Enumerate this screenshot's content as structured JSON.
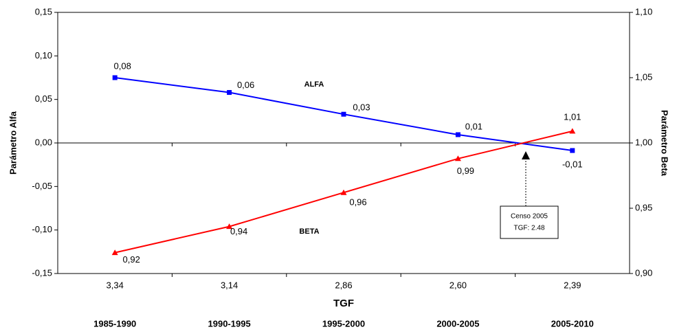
{
  "chart_data": {
    "type": "line",
    "x_label": "TGF",
    "y_label": "Parámetro Alfa",
    "y2_label": "Parámetro Beta",
    "categories": [
      "3,34",
      "3,14",
      "2,86",
      "2,60",
      "2,39"
    ],
    "periods": [
      "1985-1990",
      "1990-1995",
      "1995-2000",
      "2000-2005",
      "2005-2010"
    ],
    "series": [
      {
        "name": "ALFA",
        "color": "#0000ff",
        "values": [
          0.075,
          0.058,
          0.033,
          0.0095,
          -0.0087
        ],
        "value_labels": [
          "0,08",
          "0,06",
          "0,03",
          "0,01",
          "-0,01"
        ]
      },
      {
        "name": "BETA",
        "color": "#ff0000",
        "axis": "y2",
        "values": [
          0.916,
          0.936,
          0.962,
          0.988,
          1.009
        ],
        "value_labels": [
          "0,92",
          "0,94",
          "0,96",
          "0,99",
          "1,01"
        ]
      }
    ],
    "ylim": [
      -0.15,
      0.15
    ],
    "yticks": [
      {
        "value": -0.15,
        "label": "-0,15"
      },
      {
        "value": -0.1,
        "label": "-0,10"
      },
      {
        "value": -0.05,
        "label": "-0,05"
      },
      {
        "value": 0,
        "label": "0,00"
      },
      {
        "value": 0.05,
        "label": "0,05"
      },
      {
        "value": 0.1,
        "label": "0,10"
      },
      {
        "value": 0.15,
        "label": "0,15"
      }
    ],
    "y2lim": [
      0.9,
      1.1
    ],
    "y2ticks": [
      {
        "value": 0.9,
        "label": "0,90"
      },
      {
        "value": 0.95,
        "label": "0,95"
      },
      {
        "value": 1.0,
        "label": "1,00"
      },
      {
        "value": 1.05,
        "label": "1,05"
      },
      {
        "value": 1.1,
        "label": "1,10"
      }
    ],
    "annotation": [
      "Censo 2005",
      "TGF: 2.48"
    ]
  }
}
